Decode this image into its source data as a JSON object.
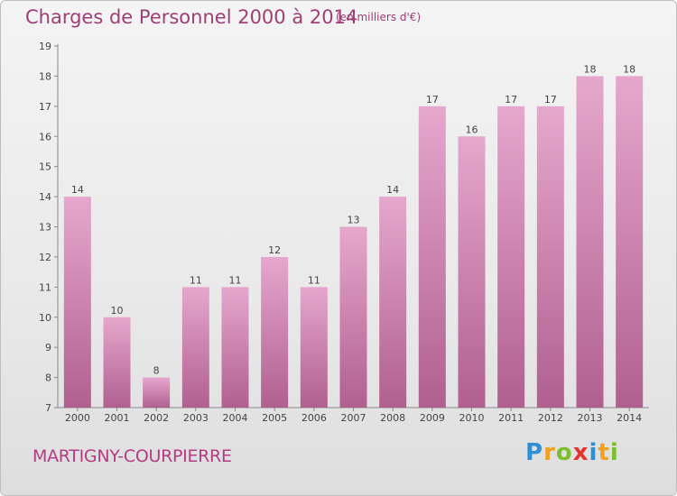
{
  "header": {
    "title": "Charges de Personnel 2000 à 2014",
    "subtitle": "(en milliers d'€)"
  },
  "footer": {
    "commune": "MARTIGNY-COURPIERRE",
    "logo_text": "Proxiti",
    "logo_letters": [
      {
        "ch": "P",
        "color": "#2e8fd8"
      },
      {
        "ch": "r",
        "color": "#f0a21e"
      },
      {
        "ch": "o",
        "color": "#7bbf2a"
      },
      {
        "ch": "x",
        "color": "#e3342f"
      },
      {
        "ch": "i",
        "color": "#2e8fd8"
      },
      {
        "ch": "t",
        "color": "#f0a21e"
      },
      {
        "ch": "i",
        "color": "#7bbf2a"
      }
    ]
  },
  "chart_data": {
    "type": "bar",
    "title": "Charges de Personnel 2000 à 2014",
    "subtitle": "(en milliers d'€)",
    "categories": [
      "2000",
      "2001",
      "2002",
      "2003",
      "2004",
      "2005",
      "2006",
      "2007",
      "2008",
      "2009",
      "2010",
      "2011",
      "2012",
      "2013",
      "2014"
    ],
    "values": [
      14,
      10,
      8,
      11,
      11,
      12,
      11,
      13,
      14,
      17,
      16,
      17,
      17,
      18,
      18
    ],
    "ylim": [
      7,
      19
    ],
    "yticks": [
      7,
      8,
      9,
      10,
      11,
      12,
      13,
      14,
      15,
      16,
      17,
      18,
      19
    ],
    "grid": false,
    "bar_color_top": "#e6a7cd",
    "bar_color_bottom": "#b0608f"
  }
}
